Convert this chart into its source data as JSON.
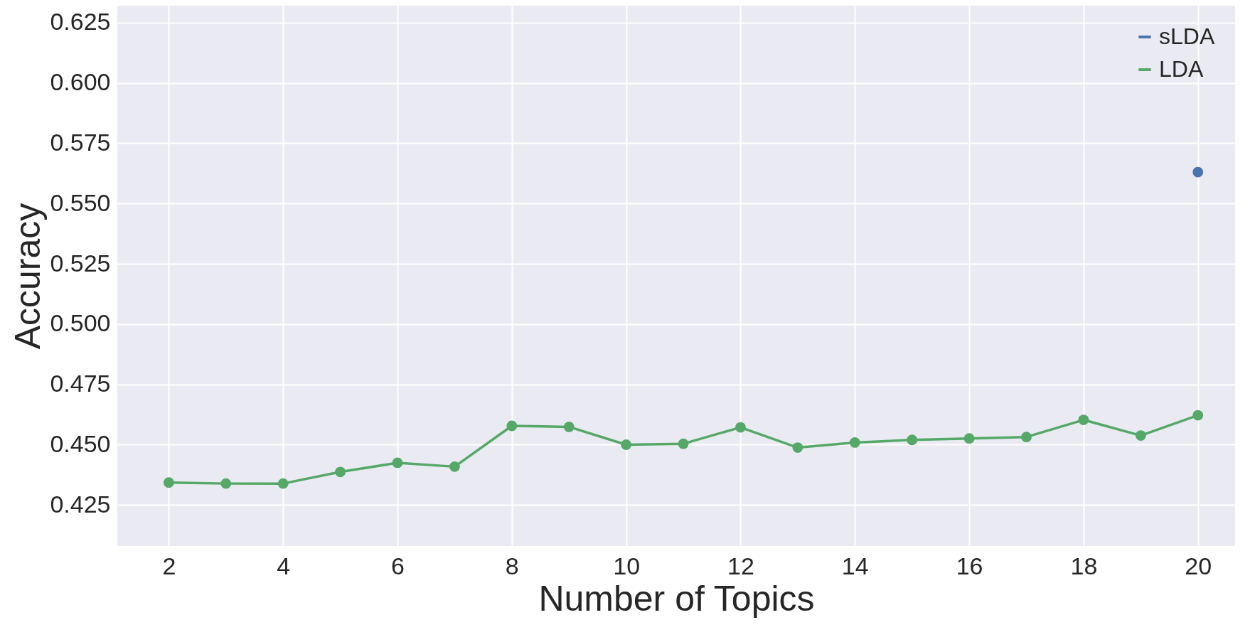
{
  "chart_data": {
    "type": "line",
    "xlabel": "Number of Topics",
    "ylabel": "Accuracy",
    "x": [
      2,
      3,
      4,
      5,
      6,
      7,
      8,
      9,
      10,
      11,
      12,
      13,
      14,
      15,
      16,
      17,
      18,
      19,
      20
    ],
    "series": [
      {
        "name": "sLDA",
        "color": "#4c72b0",
        "values": [
          null,
          null,
          null,
          null,
          null,
          null,
          null,
          null,
          null,
          null,
          null,
          null,
          null,
          null,
          null,
          null,
          null,
          null,
          0.563
        ]
      },
      {
        "name": "LDA",
        "color": "#55a868",
        "values": [
          0.4343,
          0.4339,
          0.4339,
          0.4387,
          0.4425,
          0.4409,
          0.4578,
          0.4574,
          0.45,
          0.4504,
          0.4572,
          0.4488,
          0.4509,
          0.452,
          0.4526,
          0.4532,
          0.4603,
          0.4538,
          0.4622
        ]
      }
    ],
    "xlim": [
      1.1,
      20.65
    ],
    "ylim": [
      0.408,
      0.632
    ],
    "xticks": [
      2,
      4,
      6,
      8,
      10,
      12,
      14,
      16,
      18,
      20
    ],
    "yticks": [
      0.425,
      {
        "value": 0.45,
        "label": "0.450"
      },
      0.475,
      {
        "value": 0.5,
        "label": "0.500"
      },
      0.525,
      {
        "value": 0.55,
        "label": "0.550"
      },
      0.575,
      {
        "value": 0.6,
        "label": "0.600"
      },
      0.625
    ],
    "grid": true,
    "legend": "top right",
    "marker": "circle",
    "line_style": "solid"
  }
}
